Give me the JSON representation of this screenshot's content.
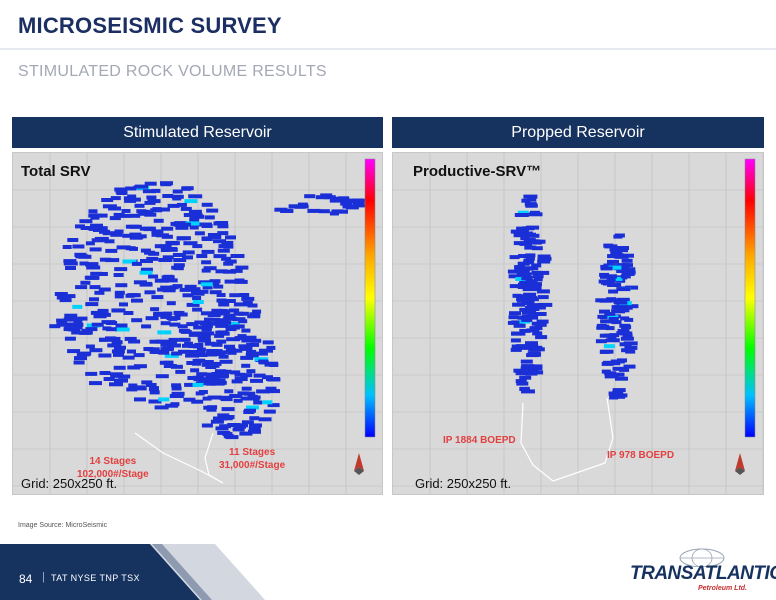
{
  "header": {
    "title": "MICROSEISMIC SURVEY",
    "subtitle": "STIMULATED ROCK VOLUME RESULTS"
  },
  "panels": {
    "left": {
      "header": "Stimulated Reservoir",
      "map_title": "Total SRV",
      "grid": "Grid: 250x250 ft.",
      "annotations": {
        "a_line1": "14 Stages",
        "a_line2": "102,000#/Stage",
        "b_line1": "11 Stages",
        "b_line2": "31,000#/Stage"
      }
    },
    "right": {
      "header": "Propped Reservoir",
      "map_title": "Productive-SRV™",
      "grid": "Grid: 250x250 ft.",
      "annotations": {
        "ip_a": "IP 1884 BOEPD",
        "ip_b": "IP 978 BOEPD"
      }
    }
  },
  "source": "Image Source: MicroSeismic",
  "footer": {
    "page": "84",
    "separator": "|",
    "ticker": "TAT NYSE   TNP TSX"
  },
  "logo": {
    "wordmark": "TRANSATLANTIC",
    "tagline": "Petroleum Ltd."
  },
  "colors": {
    "navy": "#16325f",
    "event_blue": "#1a2fd6",
    "annotation_red": "#e24040",
    "map_bg": "#d9d9d9"
  }
}
